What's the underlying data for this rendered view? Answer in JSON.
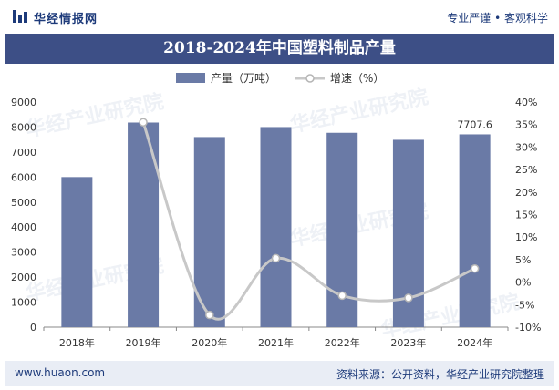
{
  "header": {
    "brand": "华经情报网",
    "slogan": "专业严谨 • 客观科学"
  },
  "footer": {
    "website": "www.huaon.com",
    "source": "资料来源：公开资料，华经产业研究院整理"
  },
  "watermark": "华经产业研究院",
  "colors": {
    "bar": "#6a7aa6",
    "line": "#c8c8c8",
    "title_bg": "#3d4f86",
    "brand": "#1d3a7a"
  },
  "chart_data": {
    "type": "bar",
    "title": "2018-2024年中国塑料制品产量",
    "categories": [
      "2018年",
      "2019年",
      "2020年",
      "2021年",
      "2022年",
      "2023年",
      "2024年"
    ],
    "series": [
      {
        "name": "产量（万吨）",
        "type": "bar",
        "axis": "left",
        "values": [
          6000,
          8180,
          7600,
          8000,
          7770,
          7490,
          7707.6
        ]
      },
      {
        "name": "增速（%）",
        "type": "line",
        "axis": "right",
        "values": [
          null,
          35.5,
          -7.3,
          5.3,
          -3.0,
          -3.5,
          3.0
        ]
      }
    ],
    "yleft": {
      "min": 0,
      "max": 9000,
      "step": 1000
    },
    "yright": {
      "min": -10,
      "max": 40,
      "step": 5,
      "suffix": "%"
    },
    "data_labels": [
      {
        "series": 0,
        "index": 6,
        "text": "7707.6"
      }
    ],
    "legend_position": "top-center"
  }
}
